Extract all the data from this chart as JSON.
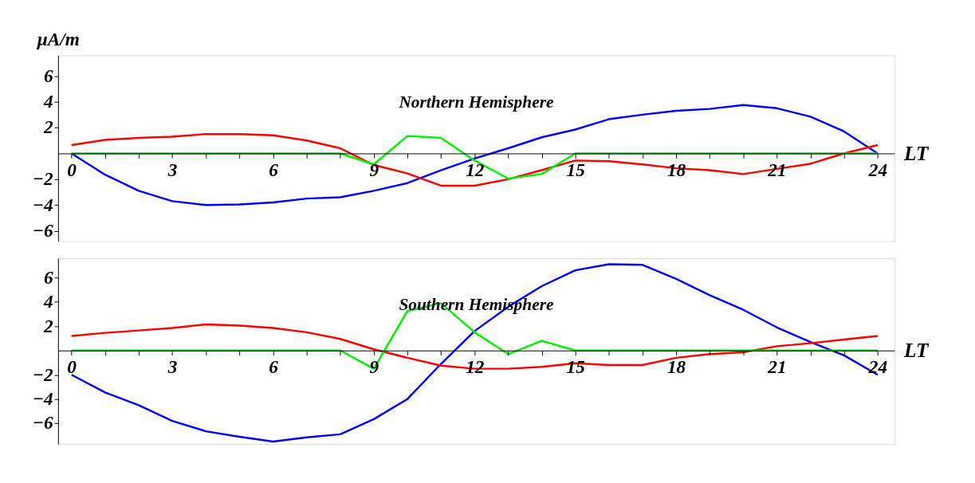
{
  "chart_data": [
    {
      "type": "line",
      "annotations": [
        "Northern Hemisphere"
      ],
      "xlabel": "LT",
      "ylabel": "μA/m",
      "grid": false,
      "x": [
        0,
        1,
        2,
        3,
        4,
        5,
        6,
        7,
        8,
        9,
        10,
        11,
        12,
        13,
        14,
        15,
        16,
        17,
        18,
        19,
        20,
        21,
        22,
        23,
        24
      ],
      "xlim": [
        -0.4,
        24.5
      ],
      "ylim": [
        -6.8,
        7.6
      ],
      "xticks": [
        0,
        {
          "value": 1,
          "label": null
        },
        {
          "value": 2,
          "label": null
        },
        3,
        {
          "value": 4,
          "label": null
        },
        {
          "value": 5,
          "label": null
        },
        6,
        {
          "value": 7,
          "label": null
        },
        {
          "value": 8,
          "label": null
        },
        9,
        {
          "value": 10,
          "label": null
        },
        {
          "value": 11,
          "label": null
        },
        12,
        {
          "value": 13,
          "label": null
        },
        {
          "value": 14,
          "label": null
        },
        15,
        {
          "value": 16,
          "label": null
        },
        {
          "value": 17,
          "label": null
        },
        18,
        {
          "value": 19,
          "label": null
        },
        {
          "value": 20,
          "label": null
        },
        21,
        {
          "value": 22,
          "label": null
        },
        {
          "value": 23,
          "label": null
        },
        24
      ],
      "yticks": [
        -6,
        -4,
        -2,
        2,
        4,
        6
      ],
      "series": [
        {
          "color": "#0000ff",
          "values": [
            0,
            -1.65,
            -2.9,
            -3.7,
            -4.0,
            -3.95,
            -3.8,
            -3.5,
            -3.4,
            -2.9,
            -2.3,
            -1.3,
            -0.4,
            0.4,
            1.25,
            1.85,
            2.65,
            3.0,
            3.3,
            3.45,
            3.75,
            3.5,
            2.85,
            1.7,
            0
          ]
        },
        {
          "color": "#ff0000",
          "values": [
            0.65,
            1.05,
            1.2,
            1.3,
            1.5,
            1.5,
            1.4,
            1.0,
            0.4,
            -0.9,
            -1.55,
            -2.5,
            -2.5,
            -2.0,
            -1.3,
            -0.55,
            -0.6,
            -0.85,
            -1.15,
            -1.3,
            -1.6,
            -1.2,
            -0.8,
            0,
            0.65
          ]
        },
        {
          "color": "#00ee00",
          "values": [
            0,
            0,
            0,
            0,
            0,
            0,
            0,
            0,
            0,
            -0.85,
            1.35,
            1.2,
            -0.55,
            -1.95,
            -1.6,
            0,
            0,
            0,
            0,
            0,
            0,
            0,
            0,
            0,
            0
          ]
        }
      ]
    },
    {
      "type": "line",
      "annotations": [
        "Southern Hemisphere"
      ],
      "xlabel": "LT",
      "grid": false,
      "x": [
        0,
        1,
        2,
        3,
        4,
        5,
        6,
        7,
        8,
        9,
        10,
        11,
        12,
        13,
        14,
        15,
        16,
        17,
        18,
        19,
        20,
        21,
        22,
        23,
        24
      ],
      "xlim": [
        -0.4,
        24.5
      ],
      "ylim": [
        -7.7,
        7.6
      ],
      "xticks": [
        0,
        {
          "value": 1,
          "label": null
        },
        {
          "value": 2,
          "label": null
        },
        3,
        {
          "value": 4,
          "label": null
        },
        {
          "value": 5,
          "label": null
        },
        6,
        {
          "value": 7,
          "label": null
        },
        {
          "value": 8,
          "label": null
        },
        9,
        {
          "value": 10,
          "label": null
        },
        {
          "value": 11,
          "label": null
        },
        12,
        {
          "value": 13,
          "label": null
        },
        {
          "value": 14,
          "label": null
        },
        15,
        {
          "value": 16,
          "label": null
        },
        {
          "value": 17,
          "label": null
        },
        18,
        {
          "value": 19,
          "label": null
        },
        {
          "value": 20,
          "label": null
        },
        21,
        {
          "value": 22,
          "label": null
        },
        {
          "value": 23,
          "label": null
        },
        24
      ],
      "yticks": [
        -6,
        -4,
        -2,
        2,
        4,
        6
      ],
      "series": [
        {
          "color": "#0000ff",
          "values": [
            -2.0,
            -3.45,
            -4.5,
            -5.8,
            -6.65,
            -7.1,
            -7.5,
            -7.15,
            -6.9,
            -5.65,
            -4.0,
            -1.1,
            1.6,
            3.6,
            5.3,
            6.6,
            7.1,
            7.05,
            5.9,
            4.55,
            3.35,
            1.9,
            0.7,
            -0.4,
            -2.0
          ]
        },
        {
          "color": "#ff0000",
          "values": [
            1.2,
            1.45,
            1.65,
            1.85,
            2.15,
            2.05,
            1.85,
            1.5,
            0.95,
            0.1,
            -0.6,
            -1.25,
            -1.5,
            -1.5,
            -1.35,
            -1.05,
            -1.2,
            -1.2,
            -0.6,
            -0.3,
            -0.15,
            0.35,
            0.6,
            0.9,
            1.2
          ]
        },
        {
          "color": "#00ee00",
          "values": [
            0,
            0,
            0,
            0,
            0,
            0,
            0,
            0,
            0,
            -1.5,
            3.25,
            3.9,
            1.5,
            -0.3,
            0.8,
            0,
            0,
            0,
            0,
            0,
            0,
            0,
            0,
            0,
            0
          ]
        }
      ]
    }
  ]
}
